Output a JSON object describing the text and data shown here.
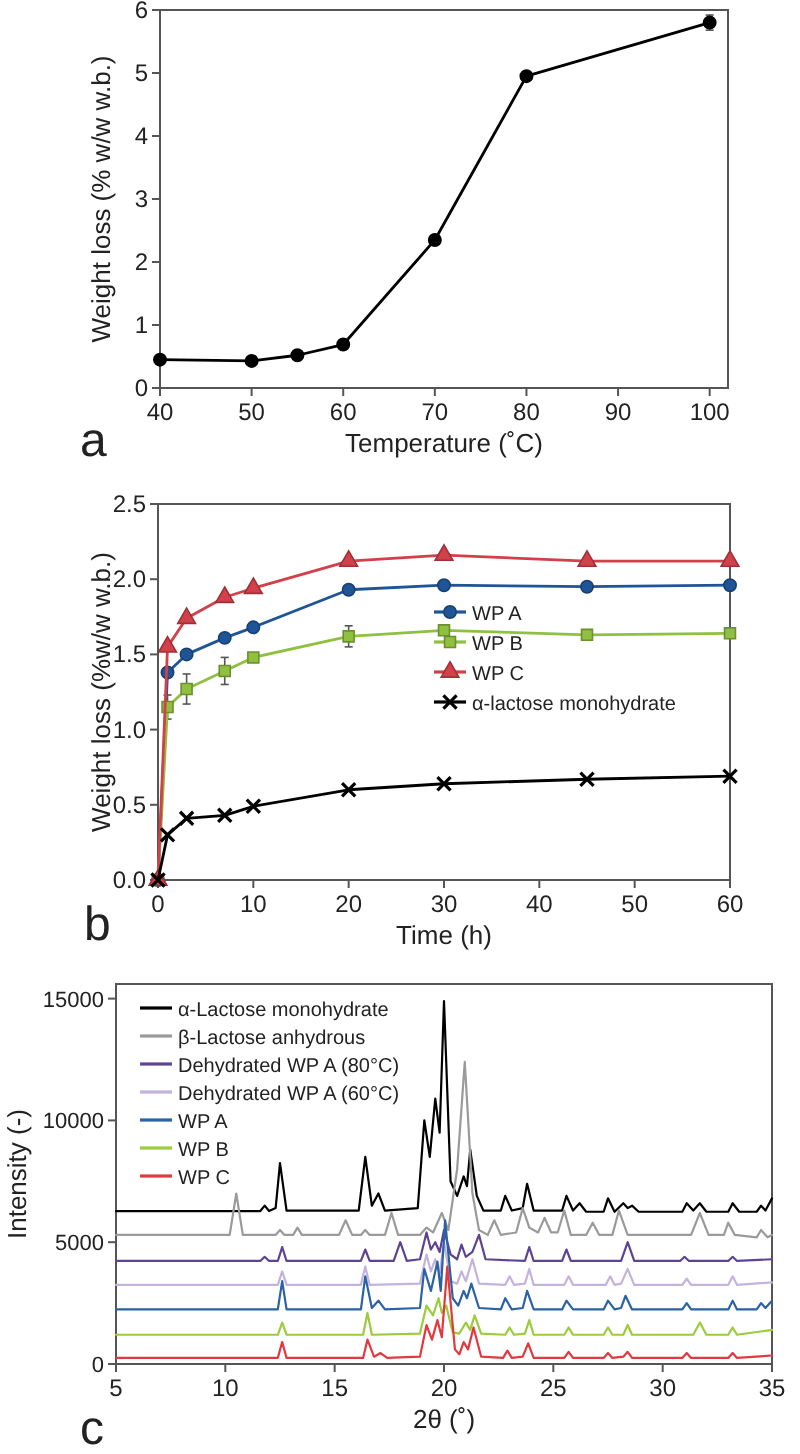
{
  "chart_data": [
    {
      "type": "line",
      "x": [
        40,
        50,
        55,
        60,
        70,
        80,
        100
      ],
      "values": [
        0.45,
        0.43,
        0.52,
        0.69,
        2.35,
        4.95,
        5.8
      ],
      "errors": [
        null,
        null,
        null,
        null,
        null,
        null,
        0.12
      ],
      "color": "#000000",
      "marker": "circle",
      "xlim": [
        40,
        102
      ],
      "xticks": [
        40,
        50,
        60,
        70,
        80,
        90,
        100
      ],
      "ylim": [
        0,
        6
      ],
      "yticks": [
        0,
        1,
        2,
        3,
        4,
        5,
        6
      ],
      "xlabel": "Temperature (˚C)",
      "ylabel": "Weight loss (% w/w w.b.)",
      "annotations": [
        "a"
      ]
    },
    {
      "type": "line",
      "x": [
        0,
        1,
        3,
        7,
        10,
        20,
        30,
        45,
        60
      ],
      "xlim": [
        0,
        60
      ],
      "xticks": [
        0,
        10,
        20,
        30,
        40,
        50,
        60
      ],
      "ylim": [
        0,
        2.5
      ],
      "yticks": [
        {
          "value": 0,
          "label": "0.0"
        },
        {
          "value": 0.5,
          "label": "0.5"
        },
        {
          "value": 1,
          "label": "1.0"
        },
        {
          "value": 1.5,
          "label": "1.5"
        },
        {
          "value": 2,
          "label": "2.0"
        },
        {
          "value": 2.5,
          "label": "2.5"
        }
      ],
      "xlabel": "Time (h)",
      "ylabel": "Weight loss (%w/w w.b.)",
      "legend": "right",
      "annotations": [
        "b"
      ],
      "series": [
        {
          "name": "WP A",
          "color": "#1f5597",
          "marker": "circle",
          "values": [
            0,
            1.38,
            1.5,
            1.61,
            1.68,
            1.93,
            1.96,
            1.95,
            1.96
          ]
        },
        {
          "name": "WP B",
          "color": "#8fc03f",
          "marker": "square",
          "values": [
            0,
            1.15,
            1.27,
            1.39,
            1.48,
            1.62,
            1.66,
            1.63,
            1.64
          ],
          "errors": [
            null,
            0.08,
            0.1,
            0.09,
            null,
            0.07,
            null,
            null,
            null
          ]
        },
        {
          "name": "WP C",
          "color": "#d2404a",
          "marker": "triangle",
          "values": [
            0,
            1.55,
            1.74,
            1.88,
            1.94,
            2.12,
            2.16,
            2.12,
            2.12
          ]
        },
        {
          "name": "α-lactose monohydrate",
          "color": "#000000",
          "marker": "cross",
          "values": [
            0,
            0.3,
            0.41,
            0.43,
            0.49,
            0.6,
            0.64,
            0.67,
            0.69
          ]
        }
      ]
    },
    {
      "type": "line",
      "marker": "none",
      "xlim": [
        5,
        35
      ],
      "xticks": [
        5,
        10,
        15,
        20,
        25,
        30,
        35
      ],
      "ylim": [
        0,
        15600
      ],
      "yticks": [
        0,
        5000,
        10000,
        15000
      ],
      "xlabel": "2θ (˚)",
      "ylabel": "Intensity (-)",
      "legend": "top left",
      "annotations": [
        "c"
      ],
      "series": [
        {
          "name": "α-Lactose monohydrate",
          "color": "#000000",
          "x": [
            5,
            11.6,
            11.8,
            12.0,
            12.3,
            12.5,
            12.8,
            16.1,
            16.4,
            16.7,
            17.0,
            17.3,
            18.8,
            19.1,
            19.35,
            19.6,
            19.8,
            20.0,
            20.3,
            20.6,
            20.9,
            21.05,
            21.2,
            21.5,
            21.8,
            22.6,
            22.8,
            23.1,
            23.6,
            23.8,
            24.1,
            25.4,
            25.6,
            25.9,
            26.2,
            26.5,
            27.3,
            27.5,
            27.8,
            28.2,
            28.4,
            28.6,
            28.9,
            30.9,
            31.1,
            31.4,
            31.7,
            32.0,
            33.0,
            33.2,
            33.5,
            34.3,
            34.5,
            34.7,
            35
          ],
          "values": [
            6280,
            6280,
            6500,
            6280,
            6400,
            8250,
            6300,
            6300,
            8500,
            6500,
            7000,
            6300,
            6400,
            10000,
            8500,
            10900,
            9500,
            14900,
            7500,
            6900,
            7700,
            7300,
            8800,
            6900,
            6300,
            6300,
            6900,
            6300,
            6400,
            7400,
            6300,
            6300,
            6900,
            6300,
            6600,
            6250,
            6250,
            6800,
            6250,
            6600,
            6400,
            6500,
            6250,
            6250,
            6600,
            6300,
            6600,
            6250,
            6250,
            6600,
            6250,
            6250,
            6500,
            6300,
            6800
          ]
        },
        {
          "name": "β-Lactose anhydrous",
          "color": "#9a9a9a",
          "x": [
            5,
            10.2,
            10.5,
            10.8,
            12.3,
            12.5,
            12.7,
            13.1,
            13.3,
            13.5,
            15.2,
            15.5,
            15.8,
            16.2,
            16.4,
            16.6,
            17.3,
            17.6,
            17.9,
            18.9,
            19.2,
            19.5,
            19.9,
            20.2,
            20.6,
            20.95,
            21.3,
            21.6,
            22.0,
            22.3,
            22.6,
            23.3,
            23.6,
            23.9,
            24.3,
            24.6,
            24.9,
            25.2,
            25.5,
            25.8,
            26.5,
            26.8,
            27.1,
            27.7,
            28.0,
            28.4,
            31.3,
            31.7,
            32.1,
            32.8,
            33.0,
            33.3,
            34.3,
            34.5,
            34.8,
            35
          ],
          "values": [
            5300,
            5300,
            7000,
            5300,
            5300,
            5500,
            5300,
            5300,
            5600,
            5300,
            5300,
            5900,
            5300,
            5300,
            5500,
            5300,
            5300,
            6200,
            5300,
            5300,
            5600,
            5400,
            6200,
            5500,
            8000,
            12400,
            7000,
            5500,
            5300,
            5900,
            5300,
            5400,
            6400,
            5600,
            5400,
            6000,
            5400,
            5400,
            6300,
            5300,
            5300,
            5800,
            5300,
            5300,
            6300,
            5300,
            5300,
            6200,
            5300,
            5300,
            5800,
            5300,
            5200,
            5500,
            5200,
            5300
          ]
        },
        {
          "name": "Dehydrated WP A (80°C)",
          "color": "#5e4393",
          "x": [
            5,
            11.6,
            11.8,
            12.0,
            12.4,
            12.6,
            12.8,
            16.2,
            16.4,
            16.6,
            17.7,
            18.0,
            18.3,
            18.9,
            19.2,
            19.4,
            19.6,
            19.8,
            20.0,
            20.3,
            20.6,
            20.8,
            21.0,
            21.3,
            21.6,
            21.9,
            23.7,
            23.9,
            24.1,
            25.4,
            25.6,
            25.8,
            28.1,
            28.4,
            28.7,
            30.8,
            31.0,
            31.2,
            33.0,
            33.2,
            33.4,
            35
          ],
          "values": [
            4230,
            4230,
            4400,
            4230,
            4230,
            4800,
            4230,
            4230,
            4700,
            4230,
            4230,
            5000,
            4230,
            4300,
            5400,
            4700,
            5000,
            4600,
            5500,
            4500,
            4300,
            4900,
            4400,
            4600,
            5300,
            4300,
            4230,
            4800,
            4230,
            4230,
            4700,
            4230,
            4230,
            5000,
            4230,
            4230,
            4400,
            4230,
            4230,
            4400,
            4230,
            4300
          ]
        },
        {
          "name": "Dehydrated WP A (60°C)",
          "color": "#c3b3de",
          "x": [
            5,
            12.4,
            12.6,
            12.8,
            16.2,
            16.4,
            16.6,
            18.9,
            19.2,
            19.4,
            19.6,
            19.8,
            20.0,
            20.3,
            20.6,
            20.8,
            21.0,
            21.3,
            21.6,
            22.8,
            23.0,
            23.2,
            23.7,
            23.9,
            24.1,
            25.5,
            25.7,
            25.9,
            27.4,
            27.6,
            27.8,
            28.1,
            28.4,
            28.7,
            30.9,
            31.1,
            31.3,
            33.0,
            33.2,
            33.4,
            35
          ],
          "values": [
            3250,
            3250,
            3800,
            3250,
            3250,
            4000,
            3250,
            3300,
            4500,
            3800,
            4300,
            3700,
            5000,
            3400,
            3300,
            3800,
            3400,
            4300,
            3300,
            3250,
            3600,
            3250,
            3300,
            3900,
            3250,
            3250,
            3600,
            3250,
            3250,
            3600,
            3250,
            3300,
            3900,
            3250,
            3250,
            3500,
            3250,
            3250,
            3600,
            3250,
            3350
          ]
        },
        {
          "name": "WP A",
          "color": "#2b62a4",
          "x": [
            5,
            12.4,
            12.6,
            12.8,
            16.2,
            16.4,
            16.7,
            17.0,
            17.3,
            18.9,
            19.1,
            19.4,
            19.7,
            19.85,
            20.05,
            20.4,
            20.65,
            20.9,
            21.05,
            21.25,
            21.6,
            22.6,
            22.8,
            23.1,
            23.6,
            23.8,
            24.1,
            25.4,
            25.6,
            25.9,
            27.3,
            27.5,
            27.8,
            28.1,
            28.3,
            28.6,
            30.9,
            31.1,
            31.3,
            33.0,
            33.2,
            33.4,
            34.3,
            34.5,
            34.7,
            35
          ],
          "values": [
            2240,
            2240,
            3400,
            2240,
            2240,
            3600,
            2300,
            2600,
            2240,
            2300,
            3900,
            3000,
            4200,
            3000,
            5900,
            2700,
            2400,
            3000,
            2700,
            3300,
            2300,
            2240,
            2700,
            2240,
            2300,
            3000,
            2240,
            2240,
            2600,
            2240,
            2240,
            2600,
            2240,
            2300,
            2800,
            2240,
            2240,
            2500,
            2240,
            2240,
            2600,
            2240,
            2240,
            2500,
            2300,
            2600
          ]
        },
        {
          "name": "WP B",
          "color": "#9ccb3b",
          "x": [
            5,
            12.4,
            12.6,
            12.8,
            16.3,
            16.5,
            16.7,
            18.9,
            19.2,
            19.5,
            19.75,
            19.9,
            20.1,
            20.4,
            20.7,
            21.0,
            21.2,
            21.4,
            21.7,
            22.8,
            23.0,
            23.2,
            23.7,
            23.9,
            24.1,
            25.5,
            25.7,
            25.9,
            27.3,
            27.5,
            27.7,
            28.2,
            28.4,
            28.6,
            31.4,
            31.7,
            32.0,
            33.0,
            33.2,
            33.4,
            35
          ],
          "values": [
            1200,
            1200,
            1700,
            1200,
            1200,
            2100,
            1200,
            1250,
            2400,
            2000,
            2700,
            2100,
            2400,
            1300,
            1250,
            1700,
            1400,
            2000,
            1250,
            1200,
            1500,
            1200,
            1250,
            1800,
            1200,
            1200,
            1500,
            1200,
            1200,
            1500,
            1200,
            1200,
            1600,
            1200,
            1200,
            1700,
            1200,
            1200,
            1500,
            1200,
            1400
          ]
        },
        {
          "name": "WP C",
          "color": "#e2393f",
          "x": [
            5,
            12.4,
            12.6,
            12.8,
            16.3,
            16.5,
            16.8,
            17.1,
            17.4,
            18.9,
            19.2,
            19.45,
            19.7,
            19.9,
            20.15,
            20.5,
            20.7,
            20.9,
            21.1,
            21.35,
            21.7,
            22.7,
            22.9,
            23.1,
            23.6,
            23.85,
            24.1,
            25.5,
            25.7,
            25.9,
            27.3,
            27.5,
            27.7,
            28.2,
            28.4,
            28.6,
            30.9,
            31.1,
            31.3,
            33.0,
            33.2,
            33.4,
            35
          ],
          "values": [
            250,
            250,
            900,
            250,
            250,
            1000,
            300,
            450,
            250,
            300,
            1600,
            1000,
            1800,
            1100,
            4000,
            600,
            400,
            900,
            600,
            1500,
            300,
            250,
            550,
            250,
            300,
            850,
            250,
            250,
            500,
            250,
            250,
            450,
            250,
            300,
            500,
            250,
            250,
            450,
            250,
            250,
            450,
            250,
            350
          ]
        }
      ]
    }
  ]
}
